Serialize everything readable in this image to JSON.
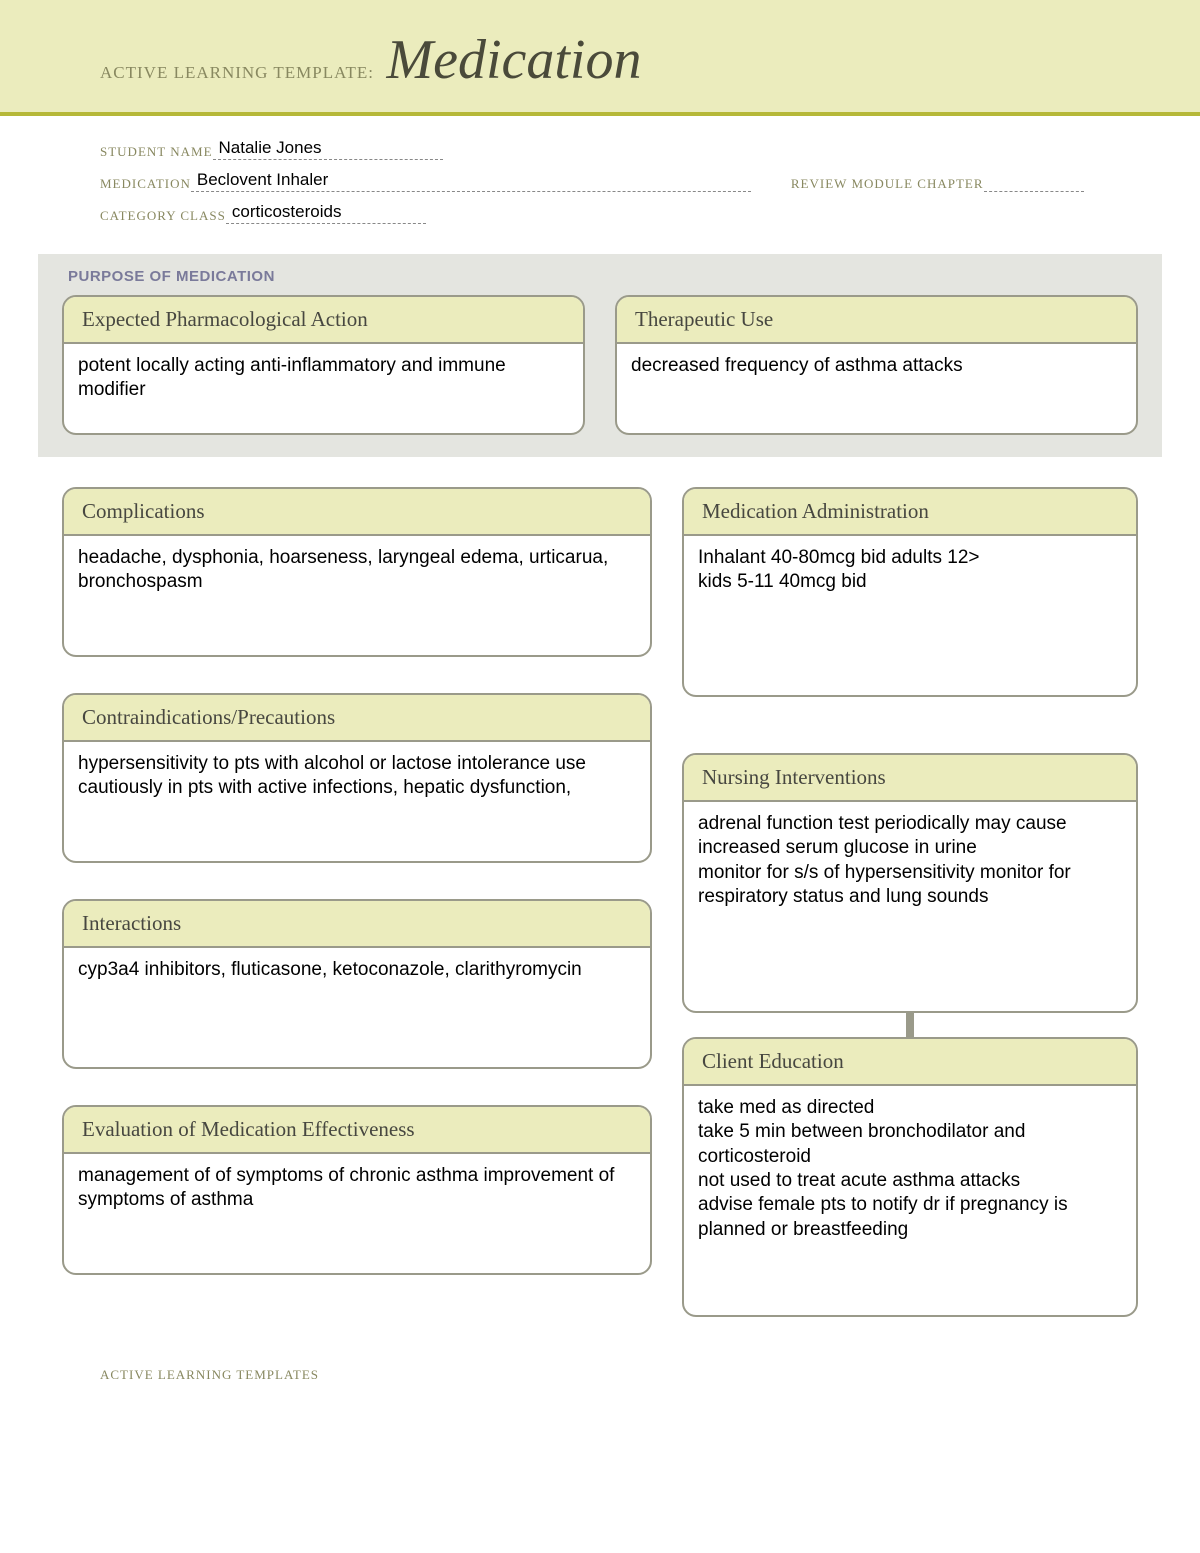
{
  "header": {
    "prefix": "ACTIVE LEARNING TEMPLATE:",
    "title": "Medication"
  },
  "info": {
    "student_label": "STUDENT NAME",
    "student_value": "Natalie Jones",
    "medication_label": "MEDICATION",
    "medication_value": "Beclovent Inhaler",
    "review_label": "REVIEW MODULE CHAPTER",
    "review_value": "",
    "category_label": "CATEGORY CLASS",
    "category_value": "corticosteroids"
  },
  "purpose": {
    "section_title": "PURPOSE OF MEDICATION",
    "pharm_action": {
      "title": "Expected Pharmacological Action",
      "body": "potent locally acting anti-inflammatory and immune modifier"
    },
    "therapeutic": {
      "title": "Therapeutic Use",
      "body": "decreased frequency of asthma attacks"
    }
  },
  "boxes": {
    "complications": {
      "title": "Complications",
      "body": "headache, dysphonia, hoarseness, laryngeal edema, urticarua, bronchospasm"
    },
    "contra": {
      "title": "Contraindications/Precautions",
      "body": "hypersensitivity to pts with alcohol or lactose intolerance use cautiously in pts with active infections, hepatic dysfunction,"
    },
    "interactions": {
      "title": "Interactions",
      "body": "cyp3a4 inhibitors, fluticasone, ketoconazole, clarithyromycin"
    },
    "evaluation": {
      "title": "Evaluation of Medication Effectiveness",
      "body": "management of of symptoms of chronic asthma improvement of symptoms of asthma"
    },
    "admin": {
      "title": "Medication Administration",
      "body": "Inhalant 40-80mcg bid adults 12>\nkids 5-11 40mcg bid"
    },
    "nursing": {
      "title": "Nursing Interventions",
      "body": "adrenal function test periodically may cause increased serum glucose in urine\nmonitor for s/s of hypersensitivity monitor for respiratory status and lung sounds"
    },
    "client": {
      "title": "Client Education",
      "body": "take med as directed\ntake 5 min between bronchodilator and corticosteroid\nnot used to treat acute asthma attacks\nadvise female pts to notify dr if pregnancy is planned or breastfeeding"
    }
  },
  "footer": "ACTIVE LEARNING TEMPLATES",
  "colors": {
    "band": "#ebecbd",
    "accent": "#b6b838",
    "border": "#9a9a8a",
    "purpose_bg": "#e4e5e0"
  }
}
